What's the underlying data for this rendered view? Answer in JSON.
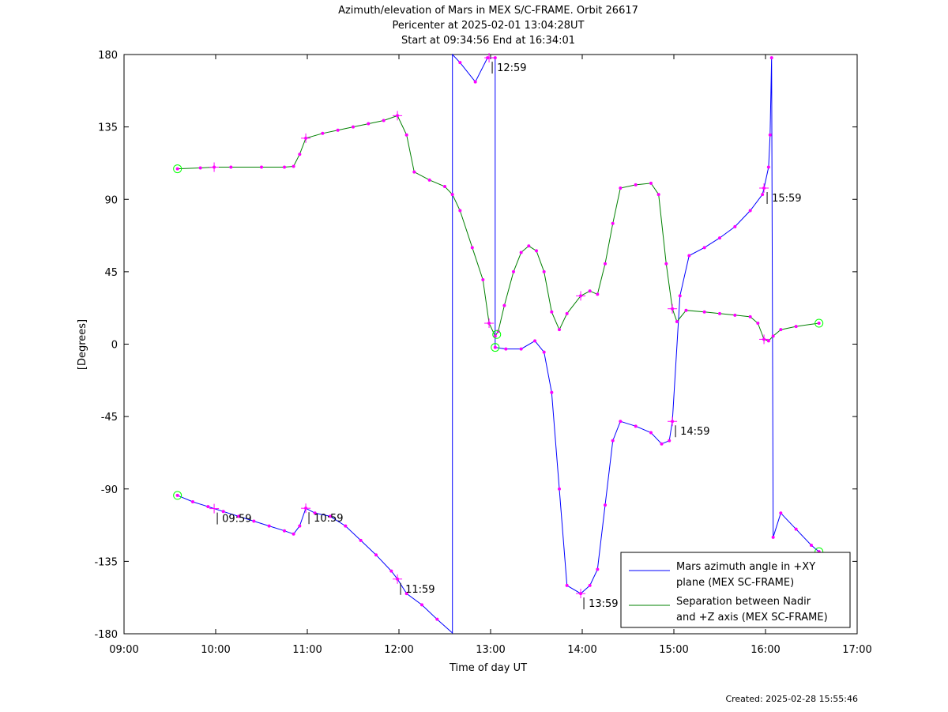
{
  "chart_data": {
    "type": "line",
    "title_lines": [
      "Azimuth/elevation of Mars in MEX S/C-FRAME.  Orbit 26617",
      "Pericenter at 2025-02-01 13:04:28UT",
      "Start at 09:34:56 End at 16:34:01"
    ],
    "xlabel": "Time of day UT",
    "ylabel": "[Degrees]",
    "xlim": [
      "09:00",
      "17:00"
    ],
    "ylim": [
      -180,
      180
    ],
    "x_ticks": [
      "09:00",
      "10:00",
      "11:00",
      "12:00",
      "13:00",
      "14:00",
      "15:00",
      "16:00",
      "17:00"
    ],
    "y_ticks": [
      "180",
      "135",
      "90",
      "45",
      "0",
      "-45",
      "-90",
      "-135",
      "-180"
    ],
    "grid": false,
    "legend_position": "bottom-right",
    "series": [
      {
        "name": "Mars azimuth angle in +XY plane (MEX SC-FRAME)",
        "legend_lines": [
          "Mars azimuth angle in +XY",
          "plane (MEX SC-FRAME)"
        ],
        "color": "#0000ff",
        "points": [
          [
            "09:35",
            -94
          ],
          [
            "09:45",
            -98
          ],
          [
            "09:55",
            -101
          ],
          [
            "10:05",
            -104
          ],
          [
            "10:15",
            -107
          ],
          [
            "10:25",
            -110
          ],
          [
            "10:35",
            -113
          ],
          [
            "10:45",
            -116
          ],
          [
            "10:51",
            -118
          ],
          [
            "10:55",
            -113
          ],
          [
            "10:59",
            -102
          ],
          [
            "11:05",
            -105
          ],
          [
            "11:15",
            -107
          ],
          [
            "11:25",
            -113
          ],
          [
            "11:35",
            -122
          ],
          [
            "11:45",
            -131
          ],
          [
            "11:55",
            -141
          ],
          [
            "11:59",
            -146
          ],
          [
            "12:05",
            -155
          ],
          [
            "12:15",
            -162
          ],
          [
            "12:25",
            -171
          ],
          [
            "12:35",
            -179.5
          ],
          [
            "12:35",
            180
          ],
          [
            "12:40",
            175
          ],
          [
            "12:50",
            163
          ],
          [
            "12:58",
            178
          ],
          [
            "13:03",
            178
          ],
          [
            "13:03",
            -2
          ],
          [
            "13:10",
            -3
          ],
          [
            "13:20",
            -3
          ],
          [
            "13:29",
            2
          ],
          [
            "13:35",
            -5
          ],
          [
            "13:40",
            -30
          ],
          [
            "13:45",
            -90
          ],
          [
            "13:50",
            -150
          ],
          [
            "13:59",
            -155
          ],
          [
            "14:05",
            -150
          ],
          [
            "14:10",
            -140
          ],
          [
            "14:15",
            -100
          ],
          [
            "14:20",
            -60
          ],
          [
            "14:25",
            -48
          ],
          [
            "14:35",
            -51
          ],
          [
            "14:45",
            -55
          ],
          [
            "14:52",
            -62
          ],
          [
            "14:57",
            -60
          ],
          [
            "14:59",
            -48
          ],
          [
            "15:04",
            30
          ],
          [
            "15:10",
            55
          ],
          [
            "15:20",
            60
          ],
          [
            "15:30",
            66
          ],
          [
            "15:40",
            73
          ],
          [
            "15:50",
            83
          ],
          [
            "15:58",
            93
          ],
          [
            "15:59",
            97
          ],
          [
            "16:02",
            110
          ],
          [
            "16:03",
            130
          ],
          [
            "16:04",
            178
          ],
          [
            "16:05",
            -120
          ],
          [
            "16:10",
            -105
          ],
          [
            "16:20",
            -115
          ],
          [
            "16:30",
            -125
          ],
          [
            "16:35",
            -129
          ]
        ]
      },
      {
        "name": "Separation between Nadir and +Z axis (MEX SC-FRAME)",
        "legend_lines": [
          "Separation between Nadir",
          "and +Z axis (MEX SC-FRAME)"
        ],
        "color": "#008000",
        "points": [
          [
            "09:35",
            109
          ],
          [
            "09:50",
            109.5
          ],
          [
            "09:59",
            110
          ],
          [
            "10:10",
            110
          ],
          [
            "10:30",
            110
          ],
          [
            "10:45",
            110
          ],
          [
            "10:51",
            110.5
          ],
          [
            "10:55",
            118
          ],
          [
            "10:59",
            128
          ],
          [
            "11:10",
            131
          ],
          [
            "11:20",
            133
          ],
          [
            "11:30",
            135
          ],
          [
            "11:40",
            137
          ],
          [
            "11:50",
            139
          ],
          [
            "11:59",
            142
          ],
          [
            "12:05",
            130
          ],
          [
            "12:10",
            107
          ],
          [
            "12:20",
            102
          ],
          [
            "12:30",
            98
          ],
          [
            "12:35",
            93
          ],
          [
            "12:40",
            83
          ],
          [
            "12:48",
            60
          ],
          [
            "12:55",
            40
          ],
          [
            "12:59",
            13
          ],
          [
            "13:03",
            5
          ],
          [
            "13:05",
            8
          ],
          [
            "13:09",
            24
          ],
          [
            "13:15",
            45
          ],
          [
            "13:20",
            57
          ],
          [
            "13:25",
            61
          ],
          [
            "13:30",
            58
          ],
          [
            "13:35",
            45
          ],
          [
            "13:40",
            20
          ],
          [
            "13:45",
            9
          ],
          [
            "13:50",
            19
          ],
          [
            "13:59",
            30
          ],
          [
            "14:05",
            33
          ],
          [
            "14:10",
            31
          ],
          [
            "14:15",
            50
          ],
          [
            "14:20",
            75
          ],
          [
            "14:25",
            97
          ],
          [
            "14:35",
            99
          ],
          [
            "14:45",
            100
          ],
          [
            "14:50",
            93
          ],
          [
            "14:55",
            50
          ],
          [
            "14:59",
            22
          ],
          [
            "15:02",
            14
          ],
          [
            "15:08",
            21
          ],
          [
            "15:20",
            20
          ],
          [
            "15:30",
            19
          ],
          [
            "15:40",
            18
          ],
          [
            "15:50",
            17
          ],
          [
            "15:55",
            13
          ],
          [
            "15:59",
            3
          ],
          [
            "16:02",
            2
          ],
          [
            "16:05",
            5
          ],
          [
            "16:10",
            9
          ],
          [
            "16:20",
            11
          ],
          [
            "16:35",
            13
          ]
        ]
      }
    ],
    "markers": {
      "plus_markers": [
        {
          "series": 0,
          "t": "09:59",
          "label": "09:59"
        },
        {
          "series": 0,
          "t": "10:59",
          "label": "10:59"
        },
        {
          "series": 0,
          "t": "11:59",
          "label": "11:59"
        },
        {
          "series": 0,
          "t": "12:59",
          "label": "12:59"
        },
        {
          "series": 0,
          "t": "13:59",
          "label": "13:59"
        },
        {
          "series": 0,
          "t": "14:59",
          "label": "14:59"
        },
        {
          "series": 0,
          "t": "15:59",
          "label": "15:59"
        },
        {
          "series": 1,
          "t": "09:59",
          "label": ""
        },
        {
          "series": 1,
          "t": "10:59",
          "label": ""
        },
        {
          "series": 1,
          "t": "11:59",
          "label": ""
        },
        {
          "series": 1,
          "t": "12:59",
          "label": ""
        },
        {
          "series": 1,
          "t": "13:59",
          "label": ""
        },
        {
          "series": 1,
          "t": "14:59",
          "label": ""
        },
        {
          "series": 1,
          "t": "15:59",
          "label": ""
        }
      ],
      "circle_markers": [
        {
          "series": 0,
          "t": "09:35",
          "y": -94
        },
        {
          "series": 0,
          "t": "13:03",
          "y": -2
        },
        {
          "series": 0,
          "t": "16:35",
          "y": -129
        },
        {
          "series": 1,
          "t": "09:35",
          "y": 109
        },
        {
          "series": 1,
          "t": "13:04",
          "y": 6
        },
        {
          "series": 1,
          "t": "16:35",
          "y": 13
        }
      ],
      "dot_color": "#ff00ff",
      "circle_color": "#00ff00"
    },
    "footer": "Created: 2025-02-28 15:55:46"
  }
}
